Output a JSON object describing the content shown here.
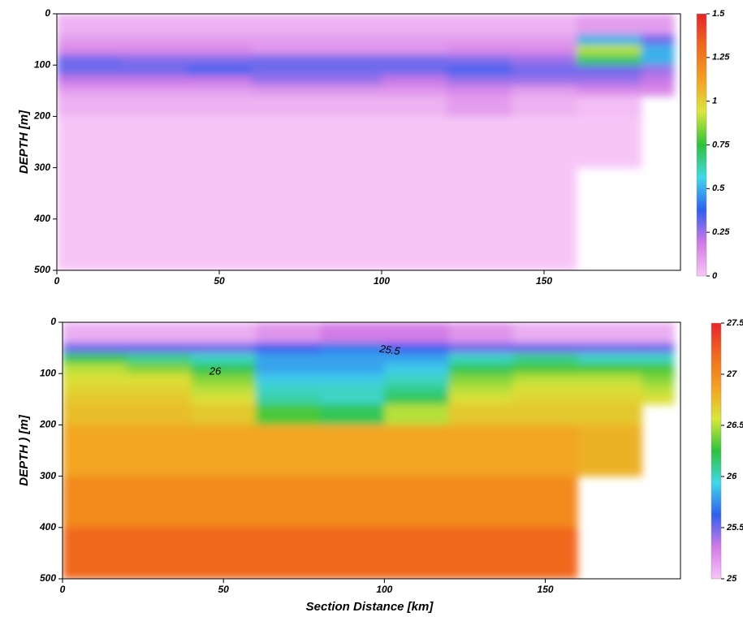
{
  "chart_data": [
    {
      "type": "heatmap",
      "ylabel": "DEPTH [m]",
      "x_edges": [
        0,
        20,
        40,
        60,
        80,
        100,
        120,
        140,
        160,
        180,
        190
      ],
      "y_edges": [
        0,
        40,
        60,
        80,
        100,
        120,
        140,
        160,
        200,
        300,
        400,
        500
      ],
      "z": [
        [
          0.05,
          0.05,
          0.05,
          0.05,
          0.05,
          0.05,
          0.05,
          0.05,
          0.1,
          0.1
        ],
        [
          0.1,
          0.1,
          0.1,
          0.1,
          0.1,
          0.1,
          0.1,
          0.1,
          0.5,
          0.3
        ],
        [
          0.15,
          0.15,
          0.15,
          0.12,
          0.12,
          0.12,
          0.15,
          0.15,
          0.9,
          0.5
        ],
        [
          0.3,
          0.28,
          0.28,
          0.3,
          0.3,
          0.3,
          0.28,
          0.25,
          0.7,
          0.5
        ],
        [
          0.3,
          0.3,
          0.35,
          0.3,
          0.3,
          0.3,
          0.35,
          0.3,
          0.3,
          0.25
        ],
        [
          0.2,
          0.2,
          0.2,
          0.25,
          0.25,
          0.2,
          0.25,
          0.25,
          0.25,
          0.2
        ],
        [
          0.1,
          0.1,
          0.1,
          0.12,
          0.12,
          0.12,
          0.15,
          0.1,
          0.15,
          0.15
        ],
        [
          0.05,
          0.05,
          0.05,
          0.05,
          0.05,
          0.05,
          0.1,
          0.05,
          0.02,
          null
        ],
        [
          0,
          0,
          0,
          0,
          0,
          0,
          0,
          0,
          0,
          null
        ],
        [
          0,
          0,
          0,
          0,
          0,
          0,
          0,
          0,
          null,
          null
        ],
        [
          0,
          0,
          0,
          0,
          0,
          0,
          0,
          0,
          null,
          null
        ]
      ],
      "xlim": [
        0,
        192
      ],
      "xticks": [
        0,
        50,
        100,
        150
      ],
      "ylim": [
        500,
        0
      ],
      "yticks": [
        0,
        100,
        200,
        300,
        400,
        500
      ],
      "zlim": [
        0,
        1.5
      ],
      "zticks": [
        0,
        0.25,
        0.5,
        0.75,
        1,
        1.25,
        1.5
      ],
      "colorscale": [
        "#f7c6f7",
        "#d27ae6",
        "#2f5ff0",
        "#3fd8e8",
        "#2ec23a",
        "#d8e83a",
        "#f4a020",
        "#f06a1e",
        "#e8232a"
      ]
    },
    {
      "type": "heatmap",
      "ylabel": "DEPTH ) [m]",
      "xlabel": "Section Distance [km]",
      "annotations": [
        "25.5",
        "26"
      ],
      "x_edges": [
        0,
        20,
        40,
        60,
        80,
        100,
        120,
        140,
        160,
        180,
        190
      ],
      "y_edges": [
        0,
        40,
        60,
        80,
        100,
        120,
        140,
        160,
        200,
        300,
        400,
        500
      ],
      "z": [
        [
          25.1,
          25.1,
          25.1,
          25.2,
          25.3,
          25.3,
          25.2,
          25.1,
          25.1,
          25.1
        ],
        [
          25.5,
          25.5,
          25.5,
          25.6,
          25.7,
          25.6,
          25.5,
          25.5,
          25.5,
          25.5
        ],
        [
          26.2,
          26.1,
          26.0,
          25.8,
          25.8,
          25.8,
          26.0,
          26.1,
          26.0,
          26.0
        ],
        [
          26.5,
          26.4,
          26.2,
          25.8,
          25.8,
          25.9,
          26.2,
          26.3,
          26.3,
          26.3
        ],
        [
          26.6,
          26.6,
          26.4,
          25.9,
          25.9,
          26.0,
          26.4,
          26.5,
          26.5,
          26.4
        ],
        [
          26.65,
          26.65,
          26.5,
          26.0,
          26.0,
          26.1,
          26.5,
          26.6,
          26.6,
          26.5
        ],
        [
          26.7,
          26.7,
          26.6,
          26.05,
          26.0,
          26.2,
          26.6,
          26.65,
          26.65,
          26.6
        ],
        [
          26.75,
          26.75,
          26.7,
          26.3,
          26.2,
          26.5,
          26.7,
          26.7,
          26.7,
          null
        ],
        [
          26.85,
          26.85,
          26.85,
          26.85,
          26.85,
          26.85,
          26.85,
          26.85,
          26.8,
          null
        ],
        [
          27.0,
          27.0,
          27.0,
          27.0,
          27.0,
          27.0,
          27.0,
          27.0,
          null,
          null
        ],
        [
          27.2,
          27.2,
          27.2,
          27.2,
          27.2,
          27.2,
          27.2,
          27.2,
          null,
          null
        ]
      ],
      "xlim": [
        0,
        192
      ],
      "xticks": [
        0,
        50,
        100,
        150
      ],
      "ylim": [
        500,
        0
      ],
      "yticks": [
        0,
        100,
        200,
        300,
        400,
        500
      ],
      "zlim": [
        25,
        27.5
      ],
      "zticks": [
        25,
        25.5,
        26,
        26.5,
        27,
        27.5
      ],
      "colorscale": [
        "#f7c6f7",
        "#d27ae6",
        "#2f5ff0",
        "#3fd8e8",
        "#2ec23a",
        "#d8e83a",
        "#f4a020",
        "#f06a1e",
        "#e8232a"
      ]
    }
  ]
}
